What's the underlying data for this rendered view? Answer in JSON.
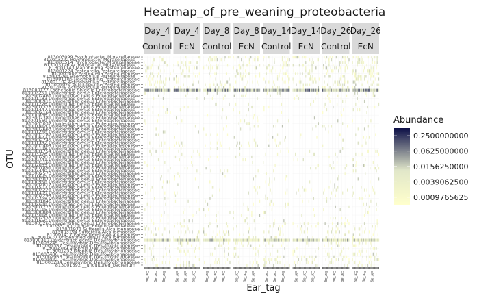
{
  "chart_data": {
    "type": "heatmap",
    "title": "Heatmap_of_pre_weaning_proteobacteria",
    "xlabel": "Ear_tag",
    "ylabel": "OTU",
    "facets": [
      {
        "day": "Day_4",
        "group": "Control"
      },
      {
        "day": "Day_4",
        "group": "EcN"
      },
      {
        "day": "Day_8",
        "group": "Control"
      },
      {
        "day": "Day_8",
        "group": "EcN"
      },
      {
        "day": "Day_14",
        "group": "Control"
      },
      {
        "day": "Day_14",
        "group": "EcN"
      },
      {
        "day": "Day_26",
        "group": "Control"
      },
      {
        "day": "Day_26",
        "group": "EcN"
      }
    ],
    "y_categories": [
      "813003099 Psychrobacter Moraxellaceae",
      "813003222 Psychrobacter Moraxellaceae",
      "813003514 Psychrobacter Moraxellaceae",
      "813003126 Acinetobacter Moraxellaceae",
      "813001143 Mannheimia Pasteurellaceae",
      "813001224 Pasteurella Pasteurellaceae",
      "813003002 Pasteurella Pasteurellaceae",
      "813003291 Haemophilus Pasteurellaceae",
      "813001185 Haemophilus Pasteurellaceae",
      "813001102 Actinobacillus Pasteurellaceae",
      "813001024 Actinobacillus Pasteurellaceae",
      "813002049 Actinobacillus Pasteurellaceae",
      "813000177 Escherichia-Shigella Enterobacteriaceae",
      "813003251 Unidentified genus Enterobacteriaceae",
      "813002461 Unidentified genus Enterobacteriaceae",
      "813001183 Unidentified genus Enterobacteriaceae",
      "813000916 Unidentified genus Enterobacteriaceae",
      "813001226 Unidentified genus Enterobacteriaceae",
      "813001378 Unidentified genus Enterobacteriaceae",
      "813001447 Unidentified genus Enterobacteriaceae",
      "813002164 Unidentified genus Enterobacteriaceae",
      "813000856 Unidentified genus Enterobacteriaceae",
      "813002381 Unidentified genus Enterobacteriaceae",
      "813001569 Unidentified genus Enterobacteriaceae",
      "813003032 Unidentified genus Enterobacteriaceae",
      "813001914 Unidentified genus Enterobacteriaceae",
      "813002663 Unidentified genus Enterobacteriaceae",
      "813001268 Unidentified genus Enterobacteriaceae",
      "813003187 Unidentified genus Enterobacteriaceae",
      "813000672 Unidentified genus Enterobacteriaceae",
      "813002745 Unidentified genus Enterobacteriaceae",
      "813001332 Unidentified genus Enterobacteriaceae",
      "813003409 Unidentified genus Enterobacteriaceae",
      "813002198 Unidentified genus Enterobacteriaceae",
      "813001754 Unidentified genus Enterobacteriaceae",
      "813003376 Unidentified genus Enterobacteriaceae",
      "813002917 Unidentified genus Enterobacteriaceae",
      "813000741 Unidentified genus Enterobacteriaceae",
      "813003168 Unidentified genus Enterobacteriaceae",
      "813002035 Unidentified genus Enterobacteriaceae",
      "813001891 Unidentified genus Enterobacteriaceae",
      "813003440 Unidentified genus Enterobacteriaceae",
      "813002573 Unidentified genus Enterobacteriaceae",
      "813001625 Unidentified genus Enterobacteriaceae",
      "813003077 Unidentified genus Enterobacteriaceae",
      "813000958 Unidentified genus Enterobacteriaceae",
      "813002812 Unidentified genus Enterobacteriaceae",
      "813001507 Unidentified genus Enterobacteriaceae",
      "813003221 Unidentified genus Enterobacteriaceae",
      "813001409 Unidentified genus Enterobacteriaceae",
      "813002299 Unidentified genus Enterobacteriaceae",
      "813003358 Unidentified genus Enterobacteriaceae",
      "813001046 Unidentified genus Enterobacteriaceae",
      "813002688 Unidentified genus Enterobacteriaceae",
      "813001773 Unidentified genus Enterobacteriaceae",
      "813003115 Unidentified genus Enterobacteriaceae",
      "813000804 Unidentified genus Enterobacteriaceae",
      "813003018 Unidentified genus Enterobacteriaceae",
      "813002533 Unidentified genus Enterobacteriaceae",
      "813001650 Unidentified genus Enterobacteriaceae",
      "813003263 Unidentified genus Enterobacteriaceae",
      "813003337 uncultured Enterobacteriaceae",
      "813001971 Sutterella Alcaligenaceae",
      "813003194 Sutterella Alcaligenaceae",
      "813001417 Parasutterella Alcaligenaceae",
      "813002870 Unidentified genus Alcaligenaceae",
      "813000319 Unidentified genus Desulfovibrionaceae",
      "813003245 Desulfovibrio Desulfovibrionaceae",
      "813001587 Desulfovibrio Desulfovibrionaceae",
      "813002709 Bilophila Desulfovibrionaceae",
      "813001232 Bilophila Desulfovibrionaceae",
      "813003406 Desulfovibrio Desulfovibrionaceae",
      "813002966 Desulfovibrio Desulfovibrionaceae",
      "813001022 Desulfovibrio Desulfovibrionaceae",
      "813003284 Desulfovibrio Desulfovibrionaceae",
      "813001592 __uncultured_bacterium"
    ],
    "dense_rows": [
      {
        "row": 12,
        "level": 0.3
      },
      {
        "row": 66,
        "level": 0.12
      }
    ],
    "color_scale": {
      "name": "Abundance",
      "transform": "log4",
      "breaks": [
        "0.2500000000",
        "0.0625000000",
        "0.0156250000",
        "0.0039062500",
        "0.0009765625"
      ],
      "low_color": "#ffffcc",
      "mid_color": "#e1e7c9",
      "high_color": "#0c0f47"
    },
    "grid": true,
    "legend_position": "right"
  }
}
